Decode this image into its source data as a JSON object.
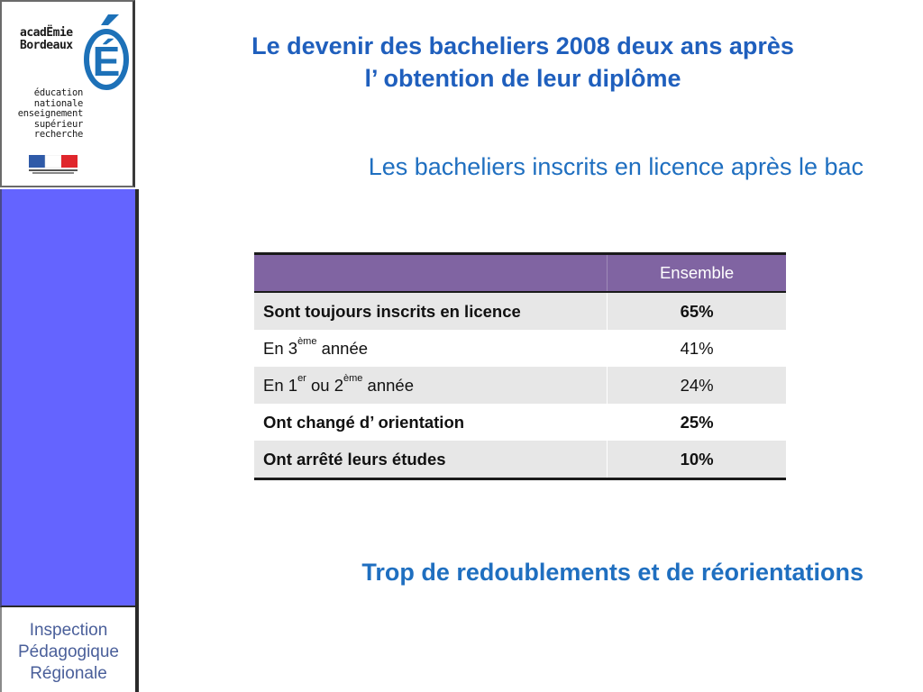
{
  "sidebar": {
    "logo": {
      "academie_line1": "acadЁmie",
      "academie_line2": "Bordeaux",
      "letter": "É",
      "ministry_lines": [
        "éducation",
        "nationale",
        "enseignement",
        "supérieur",
        "recherche"
      ]
    },
    "panel_color": "#6464ff",
    "ipr": {
      "line1": "Inspection",
      "line2": "Pédagogique",
      "line3": "Régionale"
    }
  },
  "slide": {
    "title_line1": "Le devenir des bacheliers 2008 deux ans après",
    "title_line2": "l’ obtention de leur diplôme",
    "subtitle": "Les bacheliers inscrits en licence après le bac",
    "conclusion": "Trop de redoublements et de réorientations",
    "title_color": "#1f5fbd"
  },
  "table": {
    "header": {
      "label": "",
      "value": "Ensemble"
    },
    "rows": [
      {
        "label": "Sont toujours inscrits en licence",
        "value": "65%"
      },
      {
        "label_prefix": "En 3",
        "label_sup": "ème",
        "label_suffix": " année",
        "value": "41%"
      },
      {
        "label_prefix": "En 1",
        "label_sup": "er",
        "label_mid": " ou 2",
        "label_sup2": "ème",
        "label_suffix": " année",
        "value": "24%"
      },
      {
        "label": "Ont changé d’ orientation",
        "value": "25%"
      },
      {
        "label": "Ont arrêté leurs études",
        "value": "10%"
      }
    ],
    "header_color": "#8064a2",
    "shade_color": "#e7e7e7"
  }
}
